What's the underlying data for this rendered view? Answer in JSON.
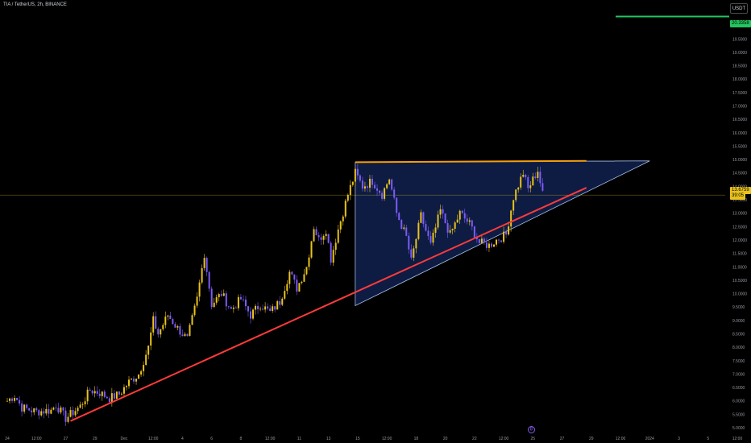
{
  "header": {
    "title": "TIA / TetherUS, 2h, BINANCE",
    "currency_button": "USDT"
  },
  "price_tags": {
    "alert_level": "20.3358",
    "last_price": "13.6759",
    "countdown": "39:05"
  },
  "colors": {
    "background": "#000000",
    "up_candle": "#e9c21d",
    "down_candle": "#7b5cf7",
    "support_line": "#ff3b3b",
    "resistance_line": "#f59e0b",
    "triangle_fill": "#0f1f4a",
    "triangle_edge": "#a7c0e8",
    "alert_line": "#22c55e",
    "price_line": "#e9c21d"
  },
  "event_icon": "dividend-icon",
  "chart_data": {
    "type": "candlestick",
    "y_scale": "linear",
    "ylim": [
      4.85,
      20.8
    ],
    "y_ticks": [
      "5.0000",
      "5.5000",
      "6.0000",
      "6.5000",
      "7.0000",
      "7.5000",
      "8.0000",
      "8.5000",
      "9.0000",
      "9.5000",
      "10.0000",
      "10.5000",
      "11.0000",
      "11.5000",
      "12.0000",
      "12.5000",
      "13.0000",
      "13.5000",
      "14.0000",
      "14.5000",
      "15.0000",
      "15.5000",
      "16.0000",
      "16.5000",
      "17.0000",
      "17.5000",
      "18.0000",
      "18.5000",
      "19.0000",
      "19.5000",
      "20.0000",
      "20.5000"
    ],
    "x_ticks": [
      "24",
      "12:00",
      "27",
      "29",
      "Dec",
      "12:00",
      "4",
      "6",
      "8",
      "12:00",
      "11",
      "13",
      "15",
      "12:00",
      "18",
      "20",
      "22",
      "12:00",
      "25",
      "27",
      "29",
      "12:00",
      "2024",
      "3",
      "5",
      "12:00"
    ],
    "x_tick_index": [
      0,
      12,
      24,
      36,
      48,
      60,
      72,
      84,
      96,
      108,
      120,
      132,
      144,
      156,
      168,
      180,
      192,
      204,
      216,
      228,
      240,
      252,
      264,
      276,
      288,
      300
    ],
    "price_path": [
      [
        0,
        6.0
      ],
      [
        3,
        6.2
      ],
      [
        6,
        5.75
      ],
      [
        12,
        5.6
      ],
      [
        18,
        5.65
      ],
      [
        20,
        5.85
      ],
      [
        24,
        5.35
      ],
      [
        26,
        5.5
      ],
      [
        30,
        5.8
      ],
      [
        34,
        6.4
      ],
      [
        38,
        6.3
      ],
      [
        42,
        6.1
      ],
      [
        46,
        6.25
      ],
      [
        50,
        6.7
      ],
      [
        54,
        7.0
      ],
      [
        58,
        8.0
      ],
      [
        60,
        9.0
      ],
      [
        62,
        8.5
      ],
      [
        66,
        9.2
      ],
      [
        70,
        8.7
      ],
      [
        74,
        8.3
      ],
      [
        78,
        9.8
      ],
      [
        81,
        11.5
      ],
      [
        84,
        9.6
      ],
      [
        88,
        10.0
      ],
      [
        92,
        9.4
      ],
      [
        96,
        9.8
      ],
      [
        100,
        9.2
      ],
      [
        104,
        9.6
      ],
      [
        108,
        9.3
      ],
      [
        112,
        9.7
      ],
      [
        116,
        10.8
      ],
      [
        119,
        10.2
      ],
      [
        123,
        11.0
      ],
      [
        126,
        12.5
      ],
      [
        128,
        12.0
      ],
      [
        131,
        12.4
      ],
      [
        133,
        11.3
      ],
      [
        136,
        12.4
      ],
      [
        140,
        13.7
      ],
      [
        143,
        14.5
      ],
      [
        146,
        14.0
      ],
      [
        150,
        14.2
      ],
      [
        154,
        13.7
      ],
      [
        157,
        14.3
      ],
      [
        160,
        13.0
      ],
      [
        164,
        12.1
      ],
      [
        166,
        11.2
      ],
      [
        170,
        12.9
      ],
      [
        174,
        11.8
      ],
      [
        178,
        13.1
      ],
      [
        182,
        12.2
      ],
      [
        186,
        13.0
      ],
      [
        190,
        12.6
      ],
      [
        194,
        11.9
      ],
      [
        198,
        11.8
      ],
      [
        201,
        12.0
      ],
      [
        205,
        12.2
      ],
      [
        208,
        13.6
      ],
      [
        212,
        14.5
      ],
      [
        214,
        13.9
      ],
      [
        218,
        14.6
      ],
      [
        220,
        13.7
      ]
    ],
    "support_line": {
      "from": [
        26,
        5.25
      ],
      "to": [
        238,
        13.95
      ]
    },
    "resistance_line": {
      "from": [
        143,
        14.9
      ],
      "to": [
        238,
        14.95
      ]
    },
    "triangle": [
      [
        143,
        14.9
      ],
      [
        143,
        9.55
      ],
      [
        264,
        14.95
      ]
    ],
    "alert_line": {
      "price": 20.3358,
      "from_index": 250
    },
    "current_price_line": 13.6759
  }
}
